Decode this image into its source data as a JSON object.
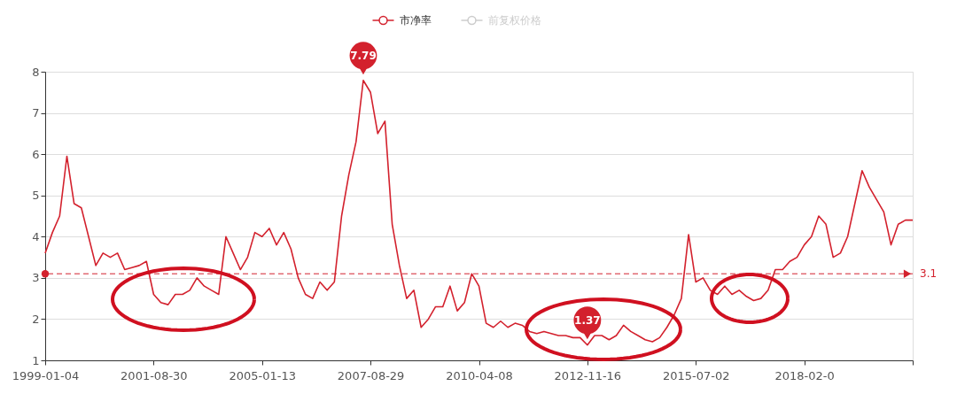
{
  "chart_data": {
    "type": "line",
    "categories": [
      "1999-01-04",
      null,
      null,
      null,
      null,
      null,
      null,
      null,
      null,
      null,
      null,
      null,
      null,
      null,
      null,
      "2001-08-30",
      null,
      null,
      null,
      null,
      null,
      null,
      null,
      null,
      null,
      null,
      null,
      null,
      null,
      null,
      "2005-01-13",
      null,
      null,
      null,
      null,
      null,
      null,
      null,
      null,
      null,
      null,
      null,
      null,
      null,
      null,
      "2007-08-29",
      null,
      null,
      null,
      null,
      null,
      null,
      null,
      null,
      null,
      null,
      null,
      null,
      null,
      null,
      "2010-04-08",
      null,
      null,
      null,
      null,
      null,
      null,
      null,
      null,
      null,
      null,
      null,
      null,
      null,
      null,
      "2012-11-16",
      null,
      null,
      null,
      null,
      null,
      null,
      null,
      null,
      null,
      null,
      null,
      null,
      null,
      null,
      "2015-07-02",
      null,
      null,
      null,
      null,
      null,
      null,
      null,
      null,
      null,
      null,
      null,
      null,
      null,
      null,
      "2018-02-0",
      null,
      null,
      null,
      null,
      null,
      null,
      null,
      null,
      null,
      null,
      null,
      null,
      null,
      null,
      null
    ],
    "series": [
      {
        "name": "市净率",
        "color": "#d3212d",
        "values": [
          3.6,
          4.1,
          4.5,
          5.95,
          4.8,
          4.7,
          4.0,
          3.3,
          3.6,
          3.5,
          3.6,
          3.2,
          3.25,
          3.3,
          3.4,
          2.6,
          2.4,
          2.35,
          2.6,
          2.6,
          2.7,
          3.0,
          2.8,
          2.7,
          2.6,
          4.0,
          3.6,
          3.2,
          3.5,
          4.1,
          4.0,
          4.2,
          3.8,
          4.1,
          3.7,
          3.0,
          2.6,
          2.5,
          2.9,
          2.7,
          2.9,
          4.5,
          5.5,
          6.3,
          7.79,
          7.5,
          6.5,
          6.8,
          4.3,
          3.3,
          2.5,
          2.7,
          1.8,
          2.0,
          2.3,
          2.3,
          2.8,
          2.2,
          2.4,
          3.1,
          2.8,
          1.9,
          1.8,
          1.95,
          1.8,
          1.9,
          1.85,
          1.7,
          1.65,
          1.7,
          1.65,
          1.6,
          1.6,
          1.55,
          1.55,
          1.37,
          1.6,
          1.6,
          1.5,
          1.6,
          1.85,
          1.7,
          1.6,
          1.5,
          1.45,
          1.55,
          1.8,
          2.1,
          2.5,
          4.05,
          2.9,
          3.0,
          2.7,
          2.6,
          2.8,
          2.6,
          2.7,
          2.55,
          2.45,
          2.5,
          2.7,
          3.2,
          3.2,
          3.4,
          3.5,
          3.8,
          4.0,
          4.5,
          4.3,
          3.5,
          3.6,
          4.0,
          4.8,
          5.6,
          5.2,
          4.9,
          4.6,
          3.8,
          4.3,
          4.4,
          4.4
        ]
      },
      {
        "name": "前复权价格",
        "color": "#cccccc",
        "values": [
          null,
          null,
          null,
          null,
          null,
          null,
          null,
          null,
          null,
          null,
          null,
          null,
          null,
          null,
          null,
          null,
          null,
          null,
          null,
          null,
          null,
          null,
          null,
          null,
          null,
          null,
          null,
          null,
          null,
          null,
          null,
          null,
          null,
          null,
          null,
          null,
          null,
          null,
          null,
          null,
          null,
          null,
          null,
          null,
          null,
          null,
          null,
          null,
          null,
          null,
          null,
          null,
          null,
          null,
          null,
          null,
          null,
          null,
          null,
          null,
          null,
          null,
          null,
          null,
          null,
          null,
          null,
          null,
          null,
          null,
          null,
          null,
          null,
          null,
          null,
          null,
          null,
          null,
          null,
          null,
          null,
          null,
          null,
          null,
          null,
          null,
          null,
          null,
          null,
          null,
          null,
          null,
          null,
          null,
          null,
          null,
          null,
          null,
          null,
          null,
          null,
          null,
          null,
          null,
          null,
          null,
          null,
          null,
          null,
          null,
          null,
          null,
          null,
          null,
          null,
          null,
          null,
          null,
          null,
          null,
          null
        ]
      }
    ],
    "ylim": [
      1,
      8
    ],
    "yticks": [
      1,
      2,
      3,
      4,
      5,
      6,
      7,
      8
    ],
    "grid": "y",
    "legend": "top",
    "marker": "none",
    "line_style": "solid",
    "ref_lines": [
      {
        "axis": "y",
        "value": 3.1,
        "label": "3.1",
        "color": "#d3212d",
        "line_style": "dashed"
      }
    ],
    "annotations": [
      {
        "text": "7.79",
        "y": 7.79
      },
      {
        "text": "1.37",
        "y": 1.37
      }
    ]
  }
}
